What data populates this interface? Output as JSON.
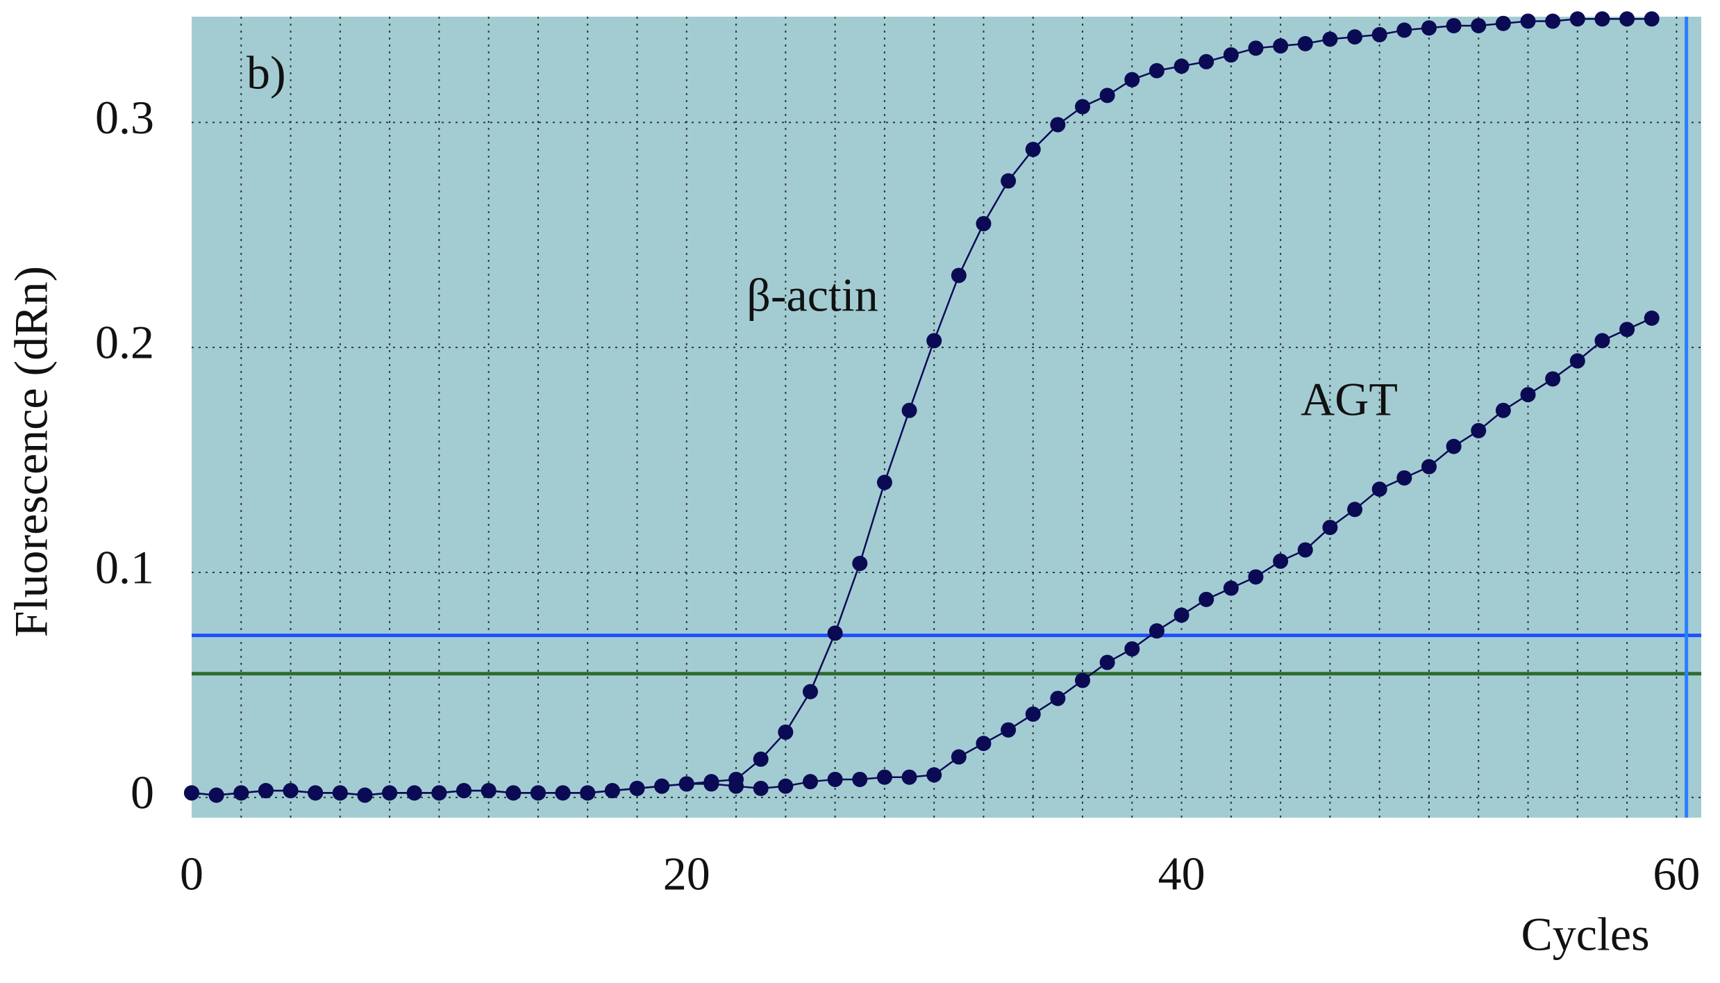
{
  "chart_data": {
    "type": "line",
    "panel_label": "b)",
    "x_label": "Cycles",
    "y_label": "Fluorescence (dRn)",
    "x": [
      0,
      1,
      2,
      3,
      4,
      5,
      6,
      7,
      8,
      9,
      10,
      11,
      12,
      13,
      14,
      15,
      16,
      17,
      18,
      19,
      20,
      21,
      22,
      23,
      24,
      25,
      26,
      27,
      28,
      29,
      30,
      31,
      32,
      33,
      34,
      35,
      36,
      37,
      38,
      39,
      40,
      41,
      42,
      43,
      44,
      45,
      46,
      47,
      48,
      49,
      50,
      51,
      52,
      53,
      54,
      55,
      56,
      57,
      58,
      59
    ],
    "series": [
      {
        "name": "β-actin",
        "color": "#0b0b55",
        "values": [
          0.002,
          0.001,
          0.002,
          0.003,
          0.003,
          0.002,
          0.002,
          0.001,
          0.002,
          0.002,
          0.002,
          0.003,
          0.003,
          0.002,
          0.002,
          0.002,
          0.002,
          0.003,
          0.004,
          0.005,
          0.006,
          0.007,
          0.008,
          0.017,
          0.029,
          0.047,
          0.073,
          0.104,
          0.14,
          0.172,
          0.203,
          0.232,
          0.255,
          0.274,
          0.288,
          0.299,
          0.307,
          0.312,
          0.319,
          0.323,
          0.325,
          0.327,
          0.33,
          0.333,
          0.334,
          0.335,
          0.337,
          0.338,
          0.339,
          0.341,
          0.342,
          0.343,
          0.343,
          0.344,
          0.345,
          0.345,
          0.346,
          0.346,
          0.346,
          0.346
        ]
      },
      {
        "name": "AGT",
        "color": "#0b0b55",
        "values": [
          0.002,
          0.001,
          0.002,
          0.003,
          0.003,
          0.002,
          0.002,
          0.001,
          0.002,
          0.002,
          0.002,
          0.003,
          0.003,
          0.002,
          0.002,
          0.002,
          0.002,
          0.003,
          0.004,
          0.005,
          0.006,
          0.006,
          0.005,
          0.004,
          0.005,
          0.007,
          0.008,
          0.008,
          0.009,
          0.009,
          0.01,
          0.018,
          0.024,
          0.03,
          0.037,
          0.044,
          0.052,
          0.06,
          0.066,
          0.074,
          0.081,
          0.088,
          0.093,
          0.098,
          0.105,
          0.11,
          0.12,
          0.128,
          0.137,
          0.142,
          0.147,
          0.156,
          0.163,
          0.172,
          0.179,
          0.186,
          0.194,
          0.203,
          0.208,
          0.213
        ]
      }
    ],
    "xlim": [
      0,
      61
    ],
    "ylim": [
      -0.009,
      0.347
    ],
    "xticks": [
      0,
      20,
      40,
      60
    ],
    "yticks": [
      0,
      0.1,
      0.2,
      0.3
    ],
    "xgrid": [
      2,
      4,
      6,
      8,
      10,
      12,
      14,
      16,
      18,
      20,
      22,
      24,
      26,
      28,
      30,
      32,
      34,
      36,
      38,
      40,
      42,
      44,
      46,
      48,
      50,
      52,
      54,
      56,
      58,
      60
    ],
    "grid": true,
    "background": "#a3ccd2",
    "threshold_lines": [
      {
        "value": 0.072,
        "color": "#1f4fff"
      },
      {
        "value": 0.055,
        "color": "#2e6b2e"
      }
    ],
    "vertical_line": {
      "value": 60.4,
      "color": "#2a7fff"
    }
  }
}
